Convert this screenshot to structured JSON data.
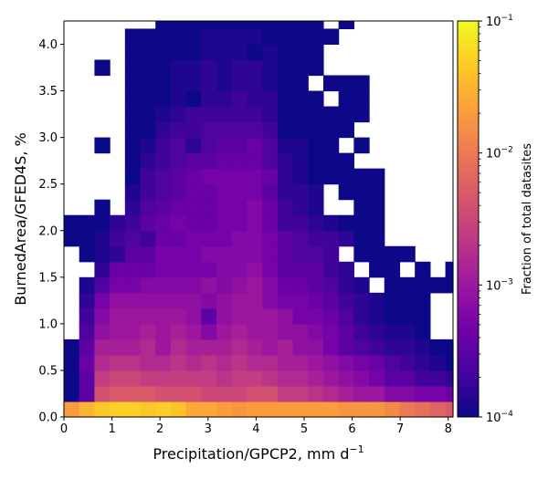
{
  "chart_data": {
    "type": "heatmap",
    "title": "",
    "xlabel": "Precipitation/GPCP2,  mm d",
    "xlabel_superscript": "−1",
    "ylabel": "BurnedArea/GFED4S,  %",
    "xlim": [
      0,
      8.1
    ],
    "ylim": [
      0,
      4.25
    ],
    "x_ticks": [
      0,
      1,
      2,
      3,
      4,
      5,
      6,
      7,
      8
    ],
    "y_ticks": [
      0.0,
      0.5,
      1.0,
      1.5,
      2.0,
      2.5,
      3.0,
      3.5,
      4.0
    ],
    "x_tick_labels": [
      "0",
      "1",
      "2",
      "3",
      "4",
      "5",
      "6",
      "7",
      "8"
    ],
    "y_tick_labels": [
      "0.0",
      "0.5",
      "1.0",
      "1.5",
      "2.0",
      "2.5",
      "3.0",
      "3.5",
      "4.0"
    ],
    "x_bin_width": 0.3176,
    "y_bin_width": 0.1667,
    "n_x_bins": 26,
    "n_y_bins": 26,
    "colormap": "plasma",
    "color_scale": "log",
    "colorbar": {
      "label": "Fraction of total datasites",
      "range": [
        0.0001,
        0.1
      ],
      "ticks": [
        {
          "value": 0.1,
          "base": "10",
          "exp": "−1"
        },
        {
          "value": 0.01,
          "base": "10",
          "exp": "−2"
        },
        {
          "value": 0.001,
          "base": "10",
          "exp": "−3"
        },
        {
          "value": 0.0001,
          "base": "10",
          "exp": "−4"
        }
      ]
    },
    "rows_log10_bottom_to_top": [
      "-1.7 -1.5 -1.35 -1.3 -1.3 -1.35 -1.3 -1.4 -1.6 -1.6 -1.7 -1.75 -1.7 -1.7 -1.7 -1.7 -1.7 -1.7 -1.75 -1.75 -1.75 -1.85 -2 -2.1 -2.2 -2.3",
      "-4 -3.5 -2.4 -2.3 -2.3 -2.3 -2.4 -2.4 -2.4 -2.5 -2.5 -2.5 -2.4 -2.4 -2.6 -2.6 -2.7 -2.8 -2.9 -3 -3 -3.2 -3.2 -3.3 -3.3 -3.4",
      "-4 -3.5 -2.6 -2.5 -2.5 -2.6 -2.6 -2.6 -2.6 -2.6 -2.7 -2.6 -2.6 -2.7 -2.8 -2.8 -2.9 -3 -3.1 -3.2 -3.3 -3.5 -3.5 -3.7 -3.7 -3.8",
      "-4 -3.4 -2.8 -2.7 -2.7 -2.8 -2.8 -2.7 -2.8 -2.7 -2.8 -2.7 -2.8 -2.8 -2.9 -2.9 -3 -3.1 -3.2 -3.3 -3.4 -3.6 -3.7 -3.8 -3.9 -4",
      "-4 -3.5 -2.9 -2.9 -2.9 -2.8 -3 -2.8 -2.9 -2.9 -2.9 -2.8 -2.9 -3 -2.9 -3.1 -3.1 -3.3 -3.5 -3.6 -3.7 -3.8 -3.8 -3.9 -4 -4",
      "x -3.6 -3.1 -3 -3 -2.9 -3 -2.9 -3 -3.2 -3 -2.9 -3 -3 -3.1 -3.1 -3.2 -3.3 -3.5 -3.7 -3.8 -3.9 -3.9 -4 x x",
      "x -3.7 -3.2 -3 -3 -3 -3 -3 -3.1 -3.5 -3.1 -3 -3 -3 -3.1 -3.3 -3.3 -3.4 -3.6 -3.8 -3.9 -4 -4 -4 x x",
      "x -3.8 -3.3 -3.1 -3.1 -3.1 -3.1 -3.1 -3.1 -3.2 -3.1 -3 -3 -3.2 -3.3 -3.3 -3.4 -3.5 -3.7 -3.8 -3.9 -4 -4 -4 x x",
      "x -3.9 -3.6 -3.3 -3.3 -3.2 -3.2 -3.2 -3.2 -3.1 -3.2 -3.1 -3 -3.2 -3.4 -3.4 -3.5 -3.6 -3.8 -3.9 x -4 -4 -4 -4 -4",
      "x x -3.8 -3.4 -3.4 -3.4 -3.3 -3.3 -3.3 -3.3 -3.2 -3.2 -3.1 -3.3 -3.5 -3.5 -3.5 -3.7 -3.8 x -4 -4 x -4 x -4",
      "x -4 -3.9 -3.8 -3.5 -3.5 -3.3 -3.3 -3.3 -3.2 -3.2 -3.2 -3.2 -3.3 -3.5 -3.6 -3.6 -3.7 x -4 -4 -4 -4 x x x",
      "-4 -4 -3.9 -3.7 -3.6 -3.7 -3.4 -3.4 -3.3 -3.3 -3.3 -3.2 -3.2 -3.3 -3.5 -3.6 -3.7 -3.7 -3.8 -4 -4 x x x x x",
      "-4 -4 -4 -3.8 -3.7 -3.5 -3.4 -3.3 -3.4 -3.4 -3.3 -3.3 -3.2 -3.4 -3.7 -3.7 -3.8 -3.9 -4 -4 -4 x x x x x",
      "x x -4 x -3.8 -3.6 -3.5 -3.4 -3.4 -3.4 -3.3 -3.3 -3.2 -3.4 -3.7 -3.8 -3.9 x x -4 -4 x x x x x",
      "x x x x -3.9 -3.7 -3.6 -3.5 -3.4 -3.4 -3.3 -3.3 -3.3 -3.5 -3.8 -3.8 -3.9 x -4 -4 -4 x x x x x",
      "x x x x -4 -3.7 -3.6 -3.5 -3.4 -3.3 -3.3 -3.3 -3.3 -3.4 -3.8 -3.9 -4 -4 -4 -4 -4 x x x x x",
      "x x x x -4 -3.8 -3.7 -3.6 -3.5 -3.5 -3.4 -3.4 -3.4 -3.6 -3.8 -3.9 -4 -4 -4 x x x x x x x",
      "x x -4 x -4 -3.9 -3.7 -3.6 -3.8 -3.6 -3.5 -3.5 -3.4 -3.6 -3.9 -3.9 -4 -4 x -4 x x x x x x",
      "x x x x -4 -4 -3.8 -3.7 -3.7 -3.6 -3.6 -3.6 -3.6 -3.7 -4 -4 -4 -4 -4 x x x x x x x",
      "x x x x -4 -4 -3.9 -3.8 -3.7 -3.7 -3.7 -3.7 -3.7 -3.8 -4 -4 -4 -4 -4 -4 x x x x x x",
      "x x x x -4 -4 -4 -3.9 -4 -3.8 -3.8 -3.7 -3.8 -3.8 -4 -4 -4 x -4 -4 x x x x x x",
      "x x x x -4 -4 -4 -3.9 -3.9 -3.8 -3.9 -3.8 -3.8 -3.9 -4 -4 x -4 -4 -4 x x x x x x",
      "x x -4 x -4 -4 -4 -3.9 -3.9 -3.8 -3.9 -3.8 -3.8 -3.9 -4 -4 -4 x x x x x x x x x",
      "x x x x -4 -4 -4 -4 -4 -3.9 -3.9 -3.9 -4 -3.9 -4 -4 -4 x x x x x x x x x",
      "x x x x -4 -4 -4 -4 -4 -3.9 -3.9 -3.9 -3.9 -4 -4 -4 -4 -4 x x x x x x x x",
      "x x x x x x -4 -4 -4 -4 -4 -4 -4 -4 -4 -4 -4 x -4 x x x x x x x"
    ]
  }
}
